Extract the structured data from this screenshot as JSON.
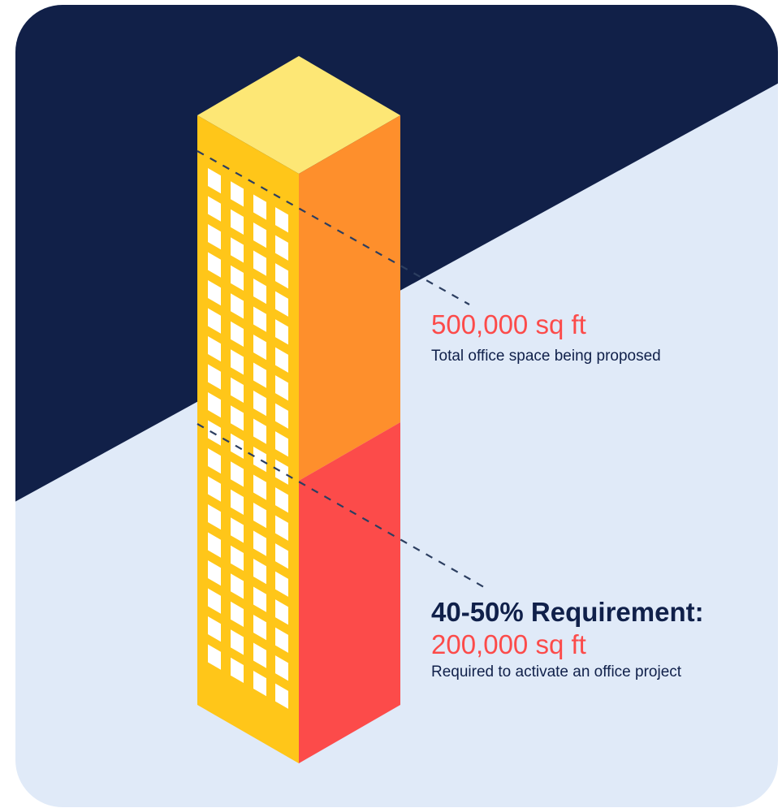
{
  "colors": {
    "navy": "#112048",
    "light_blue": "#e0eaf8",
    "roof": "#fde775",
    "front_face": "#ffc619",
    "side_upper": "#fe8f2c",
    "side_lower": "#fc4b4a",
    "window": "#ffffff",
    "accent_text": "#fc4b4a",
    "dark_text": "#10204a"
  },
  "total_space": {
    "value": "500,000 sq ft",
    "caption": "Total office space being proposed"
  },
  "requirement": {
    "title": "40-50% Requirement:",
    "value": "200,000 sq ft",
    "caption": "Required to activate an office project"
  }
}
